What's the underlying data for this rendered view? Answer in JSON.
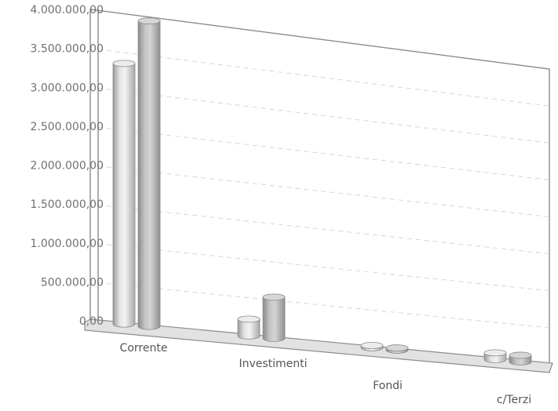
{
  "chart_data": {
    "type": "bar",
    "style": "3d-cylinder",
    "grid": true,
    "categories": [
      "Corrente",
      "Investimenti",
      "Fondi",
      "c/Terzi"
    ],
    "series": [
      {
        "values": [
          3360000,
          220000,
          30000,
          90000
        ]
      },
      {
        "values": [
          3950000,
          540000,
          30000,
          90000
        ]
      }
    ],
    "ylim": [
      0,
      4000000
    ],
    "yticks": [
      "0,00",
      "500.000,00",
      "1.000.000,00",
      "1.500.000,00",
      "2.000.000,00",
      "2.500.000,00",
      "3.000.000,00",
      "3.500.000,00",
      "4.000.000,00"
    ],
    "series_colors": [
      "#d9d9d9",
      "#b9b9b9"
    ]
  }
}
